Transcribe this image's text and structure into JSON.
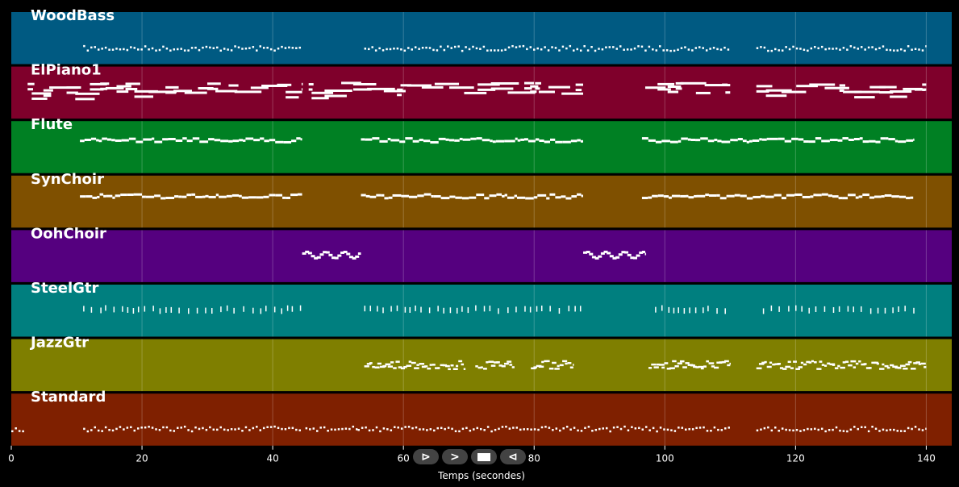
{
  "chart_data": {
    "type": "piano-roll",
    "xlabel": "Temps (secondes)",
    "xlim": [
      0,
      143.9
    ],
    "xticks": [
      0,
      20,
      40,
      60,
      80,
      100,
      120,
      140
    ],
    "grid": true,
    "tracks": [
      {
        "name": "WoodBass",
        "color": "#005a82",
        "style": "dots",
        "pitch": 0.7,
        "segments": [
          [
            11,
            44.5
          ],
          [
            54,
            110
          ],
          [
            114,
            140
          ]
        ]
      },
      {
        "name": "ElPiano1",
        "color": "#7f002b",
        "style": "bars",
        "pitch": 0.42,
        "segments": [
          [
            2.5,
            44.5
          ],
          [
            45.5,
            87.5
          ],
          [
            97,
            110
          ],
          [
            114,
            140
          ]
        ]
      },
      {
        "name": "Flute",
        "color": "#008023",
        "style": "line",
        "pitch": 0.37,
        "segments": [
          [
            10.5,
            44.5
          ],
          [
            53.5,
            87.5
          ],
          [
            96.5,
            138
          ]
        ]
      },
      {
        "name": "SynChoir",
        "color": "#7f5000",
        "style": "line",
        "pitch": 0.4,
        "segments": [
          [
            10.5,
            44.5
          ],
          [
            53.5,
            87.5
          ],
          [
            96.5,
            138
          ]
        ]
      },
      {
        "name": "OohChoir",
        "color": "#55007f",
        "style": "wave",
        "pitch": 0.48,
        "segments": [
          [
            44.5,
            53.5
          ],
          [
            87.5,
            97
          ]
        ]
      },
      {
        "name": "SteelGtr",
        "color": "#007f7f",
        "style": "ticks",
        "pitch": 0.48,
        "segments": [
          [
            11,
            44.5
          ],
          [
            54,
            87.5
          ],
          [
            98.5,
            110
          ],
          [
            115,
            138.5
          ]
        ]
      },
      {
        "name": "JazzGtr",
        "color": "#7f7f00",
        "style": "mixed",
        "pitch": 0.5,
        "segments": [
          [
            54,
            69.5
          ],
          [
            71,
            77
          ],
          [
            79.5,
            86
          ],
          [
            97.5,
            110
          ],
          [
            114,
            140
          ]
        ]
      },
      {
        "name": "Standard",
        "color": "#7f2000",
        "style": "dots",
        "pitch": 0.68,
        "segments": [
          [
            0,
            2
          ],
          [
            11,
            44.5
          ],
          [
            45,
            53
          ],
          [
            53,
            110
          ],
          [
            114,
            140
          ]
        ]
      }
    ]
  },
  "controls": {
    "play": "⊳",
    "forward": ">",
    "stop": "■",
    "back": "⊲"
  }
}
